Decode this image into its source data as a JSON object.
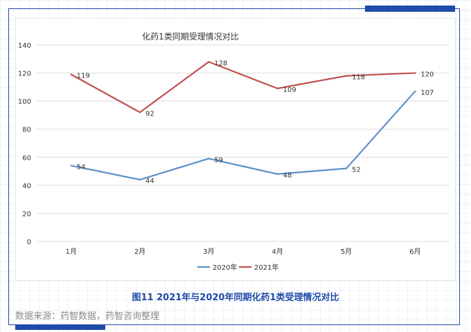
{
  "caption": "图11 2021年与2020年同期化药1类受理情况对比",
  "source": "数据来源：药智数据，药智咨询整理",
  "chart_data": {
    "type": "line",
    "title": "化药1类同期受理情况对比",
    "categories": [
      "1月",
      "2月",
      "3月",
      "4月",
      "5月",
      "6月"
    ],
    "ylim": [
      0,
      140
    ],
    "yticks": [
      0,
      20,
      40,
      60,
      80,
      100,
      120,
      140
    ],
    "grid": true,
    "legend_position": "bottom",
    "series": [
      {
        "name": "2020年",
        "color": "#5b8fc9",
        "values": [
          54,
          44,
          59,
          48,
          52,
          107
        ]
      },
      {
        "name": "2021年",
        "color": "#c0504d",
        "values": [
          119,
          92,
          128,
          109,
          118,
          120
        ]
      }
    ]
  }
}
